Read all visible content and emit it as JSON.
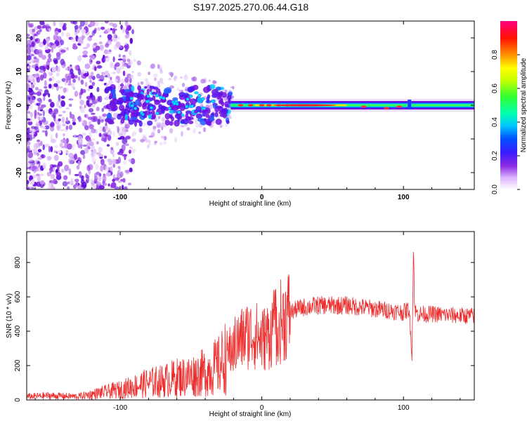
{
  "title": "S197.2025.270.06.44.G18",
  "chart_data": [
    {
      "type": "heatmap",
      "title": "S197.2025.270.06.44.G18",
      "xlabel": "Height of straight line (km)",
      "ylabel": "Frequency (Hz)",
      "xlim": [
        -166,
        150
      ],
      "ylim": [
        -25,
        25
      ],
      "x_ticks": [
        -100,
        0,
        100
      ],
      "y_ticks": [
        -20,
        -10,
        0,
        10,
        20
      ],
      "colorbar": {
        "label": "Normalized spectral amplitude",
        "range": [
          0,
          1
        ],
        "ticks": [
          "0.0",
          "0.2",
          "0.4",
          "0.6",
          "0.8"
        ]
      },
      "description_points": {
        "noise_region_x": [
          -166,
          -95
        ],
        "blob_region_x": [
          -110,
          -22
        ],
        "stable_line_x": [
          -22,
          150
        ],
        "stable_line_frequency": 0
      }
    },
    {
      "type": "line",
      "xlabel": "Height of straight line (km)",
      "ylabel": "SNR (10 * v/v)",
      "xlim": [
        -166,
        150
      ],
      "ylim": [
        0,
        980
      ],
      "x_ticks": [
        -100,
        0,
        100
      ],
      "y_ticks": [
        0,
        200,
        400,
        600,
        800
      ],
      "color": "#ee2c2c",
      "series": [
        {
          "name": "SNR",
          "x": [
            -166,
            -150,
            -130,
            -115,
            -100,
            -90,
            -80,
            -70,
            -60,
            -50,
            -40,
            -30,
            -25,
            -20,
            -15,
            -10,
            -5,
            0,
            5,
            10,
            15,
            20,
            25,
            30,
            40,
            50,
            60,
            70,
            80,
            90,
            100,
            104,
            106,
            107,
            108,
            110,
            120,
            130,
            140,
            150
          ],
          "values": [
            20,
            25,
            20,
            40,
            60,
            80,
            100,
            110,
            130,
            140,
            160,
            200,
            260,
            310,
            350,
            380,
            380,
            350,
            380,
            430,
            470,
            510,
            530,
            540,
            550,
            550,
            550,
            540,
            530,
            520,
            510,
            530,
            250,
            880,
            520,
            500,
            500,
            495,
            490,
            490
          ]
        }
      ]
    }
  ]
}
